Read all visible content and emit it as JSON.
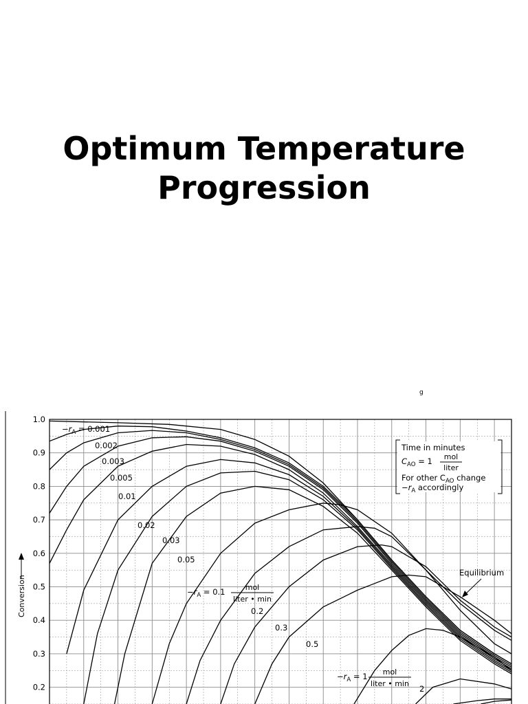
{
  "slide": {
    "title_line1": "Optimum Temperature",
    "title_line2": "Progression",
    "stray_mark": "g"
  },
  "colors": {
    "ink": "#000000",
    "grid": "#8a8a8a",
    "background": "#ffffff"
  },
  "chart_data": {
    "type": "line",
    "ylabel": "Conversion",
    "ylim": [
      0.15,
      1.0
    ],
    "yticks": [
      "1.0",
      "0.9",
      "0.8",
      "0.7",
      "0.6",
      "0.5",
      "0.4",
      "0.3",
      "0.2"
    ],
    "grid": true,
    "box": {
      "line1": "Time in minutes",
      "cao_lhs": "C",
      "cao_sub": "AO",
      "cao_eq": "= 1",
      "unit_num": "mol",
      "unit_den": "liter",
      "line3": "For other C",
      "line3_sub": "AO",
      "line3_end": "change",
      "line4": "−r",
      "line4_sub": "A",
      "line4_end": "accordingly"
    },
    "equilibrium_label": "Equilibrium",
    "labels": [
      {
        "text": "−r",
        "sub": "A",
        "rest": " = 0.001"
      },
      {
        "text": "0.002"
      },
      {
        "text": "0.003"
      },
      {
        "text": "0.005"
      },
      {
        "text": "0.01"
      },
      {
        "text": "0.02"
      },
      {
        "text": "0.03"
      },
      {
        "text": "0.05"
      },
      {
        "text": "−r",
        "sub": "A",
        "rest": " = 0.1",
        "unit_num": "mol",
        "unit_den": "liter • min"
      },
      {
        "text": "0.2"
      },
      {
        "text": "0.3"
      },
      {
        "text": "0.5"
      },
      {
        "text": "−r",
        "sub": "A",
        "rest": " = 1",
        "unit_num": "mol",
        "unit_den": "liter • min"
      },
      {
        "text": "2"
      }
    ],
    "series": [
      {
        "label_index": 0,
        "x": [
          0,
          0.2,
          0.35,
          0.5,
          0.6,
          0.7,
          0.8,
          0.9,
          1.0,
          1.1,
          1.2,
          1.3,
          1.35
        ],
        "y": [
          0.995,
          0.99,
          0.985,
          0.97,
          0.94,
          0.89,
          0.81,
          0.7,
          0.58,
          0.47,
          0.37,
          0.3,
          0.27
        ]
      },
      {
        "label_index": 1,
        "x": [
          0,
          0.05,
          0.1,
          0.2,
          0.3,
          0.4,
          0.5,
          0.6,
          0.7,
          0.8,
          0.9,
          1.0,
          1.1,
          1.2,
          1.3,
          1.35
        ],
        "y": [
          0.935,
          0.955,
          0.97,
          0.98,
          0.978,
          0.965,
          0.945,
          0.915,
          0.87,
          0.8,
          0.7,
          0.58,
          0.47,
          0.37,
          0.3,
          0.27
        ]
      },
      {
        "label_index": 2,
        "x": [
          0,
          0.05,
          0.1,
          0.2,
          0.3,
          0.4,
          0.5,
          0.6,
          0.7,
          0.8,
          0.9,
          1.0,
          1.1,
          1.2,
          1.3,
          1.35
        ],
        "y": [
          0.85,
          0.9,
          0.93,
          0.96,
          0.967,
          0.96,
          0.94,
          0.91,
          0.865,
          0.795,
          0.695,
          0.575,
          0.465,
          0.365,
          0.295,
          0.265
        ]
      },
      {
        "label_index": 3,
        "x": [
          0,
          0.05,
          0.1,
          0.2,
          0.3,
          0.4,
          0.5,
          0.6,
          0.7,
          0.8,
          0.9,
          1.0,
          1.1,
          1.2,
          1.3,
          1.35
        ],
        "y": [
          0.72,
          0.8,
          0.86,
          0.92,
          0.945,
          0.948,
          0.935,
          0.905,
          0.86,
          0.79,
          0.69,
          0.57,
          0.46,
          0.36,
          0.29,
          0.26
        ]
      },
      {
        "label_index": 4,
        "x": [
          0,
          0.05,
          0.1,
          0.2,
          0.3,
          0.4,
          0.5,
          0.6,
          0.7,
          0.8,
          0.9,
          1.0,
          1.1,
          1.2,
          1.3,
          1.35
        ],
        "y": [
          0.57,
          0.67,
          0.76,
          0.86,
          0.905,
          0.925,
          0.92,
          0.895,
          0.85,
          0.78,
          0.68,
          0.565,
          0.455,
          0.355,
          0.285,
          0.255
        ]
      },
      {
        "label_index": 5,
        "x": [
          0.05,
          0.1,
          0.2,
          0.3,
          0.4,
          0.5,
          0.6,
          0.7,
          0.8,
          0.9,
          1.0,
          1.1,
          1.2,
          1.3,
          1.35
        ],
        "y": [
          0.3,
          0.49,
          0.7,
          0.8,
          0.86,
          0.88,
          0.87,
          0.835,
          0.77,
          0.675,
          0.56,
          0.45,
          0.35,
          0.28,
          0.25
        ]
      },
      {
        "label_index": 6,
        "x": [
          0.1,
          0.14,
          0.2,
          0.3,
          0.4,
          0.5,
          0.6,
          0.7,
          0.8,
          0.9,
          1.0,
          1.1,
          1.2,
          1.3,
          1.35
        ],
        "y": [
          0.15,
          0.36,
          0.55,
          0.71,
          0.8,
          0.84,
          0.845,
          0.82,
          0.76,
          0.67,
          0.555,
          0.445,
          0.345,
          0.275,
          0.245
        ]
      },
      {
        "label_index": 7,
        "x": [
          0.19,
          0.22,
          0.3,
          0.4,
          0.5,
          0.6,
          0.7,
          0.8,
          0.9,
          1.0,
          1.1,
          1.2,
          1.3,
          1.35
        ],
        "y": [
          0.15,
          0.3,
          0.57,
          0.71,
          0.78,
          0.8,
          0.79,
          0.74,
          0.66,
          0.55,
          0.44,
          0.34,
          0.27,
          0.24
        ]
      },
      {
        "label_index": 8,
        "x": [
          0.3,
          0.35,
          0.4,
          0.5,
          0.6,
          0.7,
          0.8,
          0.85,
          0.9,
          1.0,
          1.1,
          1.2,
          1.3,
          1.35
        ],
        "y": [
          0.15,
          0.33,
          0.45,
          0.6,
          0.69,
          0.73,
          0.75,
          0.745,
          0.73,
          0.66,
          0.55,
          0.43,
          0.33,
          0.3
        ]
      },
      {
        "label_index": 9,
        "x": [
          0.4,
          0.44,
          0.5,
          0.6,
          0.7,
          0.8,
          0.9,
          0.95,
          1.0,
          1.1,
          1.2,
          1.3,
          1.35
        ],
        "y": [
          0.15,
          0.28,
          0.4,
          0.54,
          0.62,
          0.67,
          0.68,
          0.675,
          0.65,
          0.55,
          0.45,
          0.37,
          0.34
        ]
      },
      {
        "label_index": 10,
        "x": [
          0.5,
          0.54,
          0.6,
          0.7,
          0.8,
          0.9,
          0.97,
          1.0,
          1.1,
          1.2,
          1.3,
          1.35
        ],
        "y": [
          0.15,
          0.27,
          0.38,
          0.5,
          0.58,
          0.62,
          0.625,
          0.62,
          0.56,
          0.46,
          0.38,
          0.35
        ]
      },
      {
        "label_index": 11,
        "x": [
          0.6,
          0.65,
          0.7,
          0.8,
          0.9,
          0.95,
          1.0,
          1.05,
          1.1,
          1.2,
          1.3,
          1.35
        ],
        "y": [
          0.15,
          0.27,
          0.35,
          0.44,
          0.49,
          0.51,
          0.53,
          0.535,
          0.53,
          0.47,
          0.4,
          0.36
        ]
      },
      {
        "label_index": 12,
        "x": [
          0.89,
          0.95,
          1.0,
          1.05,
          1.1,
          1.15,
          1.2,
          1.3,
          1.35
        ],
        "y": [
          0.15,
          0.25,
          0.31,
          0.355,
          0.375,
          0.37,
          0.35,
          0.29,
          0.25
        ]
      },
      {
        "label_index": 13,
        "x": [
          1.07,
          1.12,
          1.2,
          1.3,
          1.35
        ],
        "y": [
          0.15,
          0.2,
          0.225,
          0.21,
          0.195
        ]
      },
      {
        "label_index": -1,
        "x": [
          1.18,
          1.25,
          1.3,
          1.35
        ],
        "y": [
          0.15,
          0.16,
          0.165,
          0.165
        ]
      },
      {
        "label_index": -1,
        "x": [
          1.26,
          1.3,
          1.35
        ],
        "y": [
          0.15,
          0.158,
          0.162
        ]
      }
    ]
  }
}
